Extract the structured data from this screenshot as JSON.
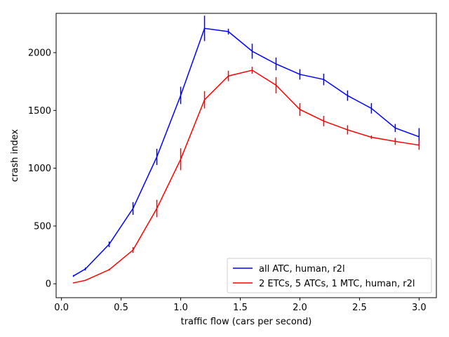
{
  "chart_data": {
    "type": "line",
    "title": "",
    "xlabel": "traffic flow (cars per second)",
    "ylabel": "crash index",
    "xlim": [
      -0.045,
      3.145
    ],
    "ylim": [
      -120,
      2340
    ],
    "xticks": [
      0.0,
      0.5,
      1.0,
      1.5,
      2.0,
      2.5,
      3.0
    ],
    "xtick_labels": [
      "0.0",
      "0.5",
      "1.0",
      "1.5",
      "2.0",
      "2.5",
      "3.0"
    ],
    "yticks": [
      0,
      500,
      1000,
      1500,
      2000
    ],
    "ytick_labels": [
      "0",
      "500",
      "1000",
      "1500",
      "2000"
    ],
    "grid": false,
    "legend_position": "bottom-right",
    "series": [
      {
        "name": "all ATC, human, r2l",
        "color": "#0000ff",
        "x": [
          0.1,
          0.2,
          0.4,
          0.6,
          0.8,
          1.0,
          1.2,
          1.4,
          1.6,
          1.8,
          2.0,
          2.2,
          2.4,
          2.6,
          2.8,
          3.0
        ],
        "y": [
          68,
          128,
          342,
          652,
          1098,
          1630,
          2210,
          2182,
          2012,
          1902,
          1812,
          1768,
          1628,
          1518,
          1348,
          1272
        ],
        "err": [
          8,
          12,
          25,
          55,
          70,
          75,
          110,
          25,
          65,
          55,
          45,
          50,
          45,
          45,
          35,
          75
        ]
      },
      {
        "name": "2 ETCs, 5 ATCs, 1 MTC, human, r2l",
        "color": "#ff0000",
        "x": [
          0.1,
          0.2,
          0.4,
          0.6,
          0.8,
          1.0,
          1.2,
          1.4,
          1.6,
          1.8,
          2.0,
          2.2,
          2.4,
          2.6,
          2.8,
          3.0
        ],
        "y": [
          8,
          30,
          122,
          292,
          652,
          1078,
          1592,
          1798,
          1848,
          1718,
          1508,
          1408,
          1332,
          1268,
          1232,
          1200
        ],
        "err": [
          4,
          5,
          8,
          25,
          75,
          95,
          75,
          45,
          30,
          70,
          55,
          45,
          40,
          15,
          30,
          40
        ]
      }
    ]
  }
}
